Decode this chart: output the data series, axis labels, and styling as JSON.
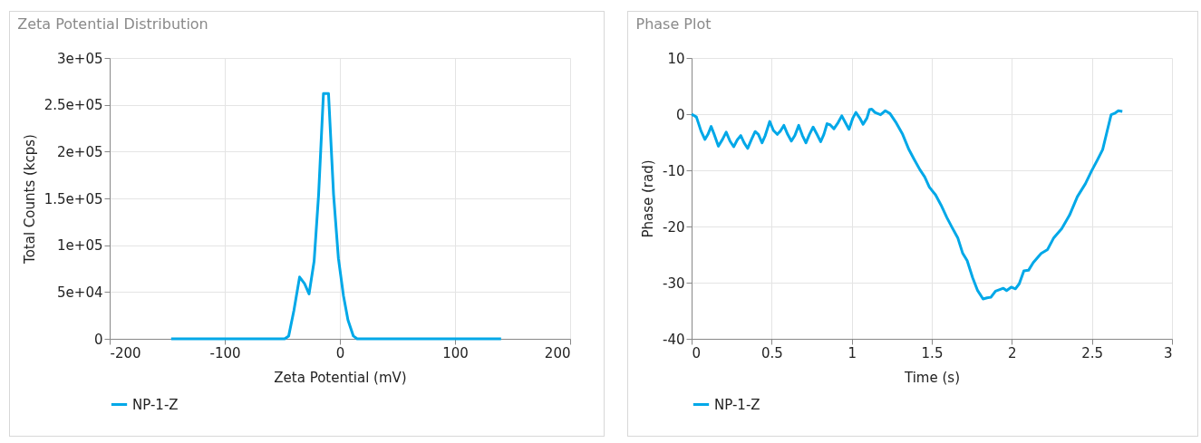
{
  "chart_data": [
    {
      "type": "line",
      "title": "Zeta Potential Distribution",
      "xlabel": "Zeta Potential (mV)",
      "ylabel": "Total Counts (kcps)",
      "x": [
        -146.6,
        -48,
        -44.5,
        -40,
        -35,
        -30.7,
        -26.8,
        -22.4,
        -18.5,
        -14.3,
        -9.9,
        -5.5,
        -1.3,
        3.1,
        7,
        11.7,
        15,
        140
      ],
      "series": [
        {
          "name": "NP-1-Z",
          "color": "#00a8e8",
          "values": [
            0,
            0,
            3000,
            30000,
            66000,
            59000,
            48000,
            83000,
            154000,
            262000,
            262000,
            154000,
            86000,
            46000,
            20000,
            3000,
            0,
            0
          ]
        }
      ],
      "xlim": [
        -200,
        200
      ],
      "xticks": [
        -200,
        -100,
        0,
        100,
        200
      ],
      "ylim": [
        0,
        300000
      ],
      "yticks": [
        0,
        {
          "value": 50000,
          "label": "5e+04"
        },
        {
          "value": 100000,
          "label": "1e+05"
        },
        {
          "value": 150000,
          "label": "1.5e+05"
        },
        {
          "value": 200000,
          "label": "2e+05"
        },
        {
          "value": 250000,
          "label": "2.5e+05"
        },
        {
          "value": 300000,
          "label": "3e+05"
        }
      ],
      "grid": true,
      "legend": "bottom"
    },
    {
      "type": "line",
      "title": "Phase Plot",
      "xlabel": "Time (s)",
      "ylabel": "Phase (rad)",
      "x": [
        0,
        0.03,
        0.059,
        0.083,
        0.102,
        0.122,
        0.141,
        0.167,
        0.193,
        0.216,
        0.24,
        0.263,
        0.285,
        0.307,
        0.328,
        0.35,
        0.374,
        0.397,
        0.417,
        0.44,
        0.46,
        0.488,
        0.511,
        0.535,
        0.555,
        0.576,
        0.6,
        0.623,
        0.645,
        0.669,
        0.692,
        0.714,
        0.736,
        0.759,
        0.783,
        0.806,
        0.826,
        0.846,
        0.865,
        0.889,
        0.915,
        0.938,
        0.96,
        0.983,
        1.007,
        1.026,
        1.05,
        1.071,
        1.095,
        1.111,
        1.125,
        1.145,
        1.18,
        1.21,
        1.239,
        1.279,
        1.318,
        1.357,
        1.387,
        1.426,
        1.456,
        1.485,
        1.524,
        1.558,
        1.594,
        1.629,
        1.662,
        1.692,
        1.721,
        1.755,
        1.786,
        1.82,
        1.845,
        1.869,
        1.898,
        1.947,
        1.967,
        1.996,
        2.022,
        2.046,
        2.075,
        2.104,
        2.134,
        2.183,
        2.223,
        2.262,
        2.311,
        2.36,
        2.409,
        2.459,
        2.498,
        2.537,
        2.567,
        2.596,
        2.62,
        2.645,
        2.665,
        2.69
      ],
      "series": [
        {
          "name": "NP-1-Z",
          "color": "#00a8e8",
          "values": [
            0,
            -0.5,
            -3.0,
            -4.5,
            -3.6,
            -2.2,
            -3.6,
            -5.7,
            -4.5,
            -3.2,
            -4.8,
            -5.8,
            -4.6,
            -3.8,
            -5.1,
            -6.1,
            -4.5,
            -3.1,
            -3.6,
            -5.1,
            -3.8,
            -1.3,
            -2.9,
            -3.6,
            -3.0,
            -2.0,
            -3.6,
            -4.8,
            -3.8,
            -2.0,
            -3.8,
            -5.1,
            -3.6,
            -2.3,
            -3.6,
            -4.9,
            -3.6,
            -1.7,
            -1.9,
            -2.6,
            -1.5,
            -0.3,
            -1.5,
            -2.7,
            -0.7,
            0.3,
            -0.7,
            -1.8,
            -0.7,
            0.8,
            0.9,
            0.3,
            -0.1,
            0.6,
            0.1,
            -1.6,
            -3.6,
            -6.3,
            -7.9,
            -9.9,
            -11.2,
            -13.0,
            -14.4,
            -16.2,
            -18.4,
            -20.3,
            -22.0,
            -24.7,
            -26.1,
            -29.1,
            -31.4,
            -32.9,
            -32.7,
            -32.6,
            -31.5,
            -31.0,
            -31.4,
            -30.8,
            -31.1,
            -30.2,
            -27.9,
            -27.8,
            -26.4,
            -24.8,
            -24.1,
            -22.0,
            -20.4,
            -18.0,
            -14.7,
            -12.4,
            -10.1,
            -8.0,
            -6.3,
            -2.9,
            -0.1,
            0.2,
            0.6,
            0.5
          ]
        }
      ],
      "xlim": [
        0,
        3
      ],
      "xticks": [
        0,
        0.5,
        1,
        1.5,
        2,
        2.5,
        3
      ],
      "ylim": [
        -40,
        10
      ],
      "yticks": [
        -40,
        -30,
        -20,
        -10,
        0,
        10
      ],
      "grid": true,
      "legend": "bottom"
    }
  ]
}
